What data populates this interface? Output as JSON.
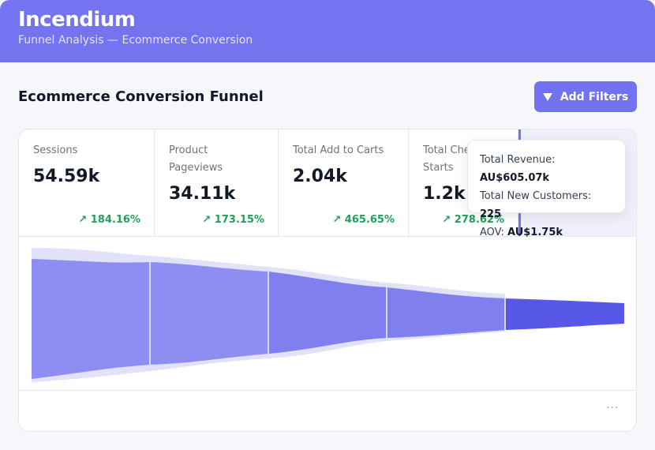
{
  "header": {
    "title": "Incendium",
    "subtitle": "Funnel Analysis — Ecommerce Conversion"
  },
  "page": {
    "title": "Ecommerce Conversion Funnel",
    "add_filters_label": "Add Filters"
  },
  "metrics": [
    {
      "label_line1": "Sessions",
      "label_line2": "",
      "value": "54.59k",
      "change": "↗ 184.16%"
    },
    {
      "label_line1": "Product",
      "label_line2": "Pageviews",
      "value": "34.11k",
      "change": "↗ 173.15%"
    },
    {
      "label_line1": "Total Add to Carts",
      "label_line2": "",
      "value": "2.04k",
      "change": "↗ 465.65%"
    },
    {
      "label_line1": "Total Che",
      "label_line2": "Starts",
      "value": "1.2k",
      "change": "↗ 278.62%"
    }
  ],
  "tooltip": {
    "revenue_label": "Total Revenue:",
    "revenue_value": "AU$605.07k",
    "customers_label": "Total New Customers:",
    "customers_value": "225",
    "aov_label": "AOV:",
    "aov_value": "AU$1.75k"
  },
  "colors": {
    "brand": "#7474f0",
    "positive": "#22a05a",
    "funnel_final": "#5858e8"
  },
  "icons": {
    "filter": "filter-icon",
    "more": "more-options-icon"
  }
}
